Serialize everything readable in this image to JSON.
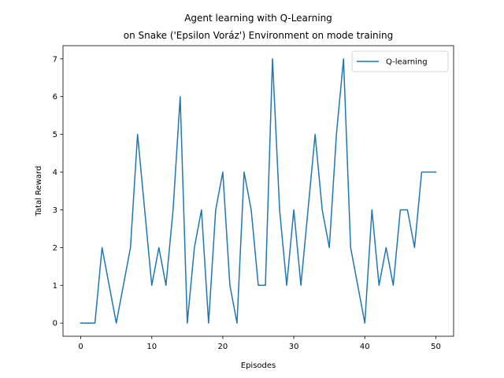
{
  "chart_data": {
    "type": "line",
    "title_lines": [
      "Agent learning with Q-Learning",
      "on Snake ('Epsilon Voráz') Environment on mode training"
    ],
    "xlabel": "Episodes",
    "ylabel": "Tatal Reward",
    "xlim": [
      -2.5,
      52.5
    ],
    "ylim": [
      -0.35,
      7.35
    ],
    "xticks": [
      0,
      10,
      20,
      30,
      40,
      50
    ],
    "yticks": [
      0,
      1,
      2,
      3,
      4,
      5,
      6,
      7
    ],
    "grid": false,
    "legend_position": "top-right",
    "series": [
      {
        "name": "Q-learning",
        "color": "#1f77b4",
        "x": [
          0,
          1,
          2,
          3,
          4,
          5,
          6,
          7,
          8,
          9,
          10,
          11,
          12,
          13,
          14,
          15,
          16,
          17,
          18,
          19,
          20,
          21,
          22,
          23,
          24,
          25,
          26,
          27,
          28,
          29,
          30,
          31,
          32,
          33,
          34,
          35,
          36,
          37,
          38,
          39,
          40,
          41,
          42,
          43,
          44,
          45,
          46,
          47,
          48,
          49,
          50
        ],
        "y": [
          0,
          0,
          0,
          2,
          1,
          0,
          1,
          2,
          5,
          3,
          1,
          2,
          1,
          3,
          6,
          0,
          2,
          3,
          0,
          3,
          4,
          1,
          0,
          4,
          3,
          1,
          1,
          7,
          3,
          1,
          3,
          1,
          3,
          5,
          3,
          2,
          5,
          7,
          2,
          1,
          0,
          3,
          1,
          2,
          1,
          3,
          3,
          2,
          4,
          4,
          4
        ]
      }
    ]
  }
}
